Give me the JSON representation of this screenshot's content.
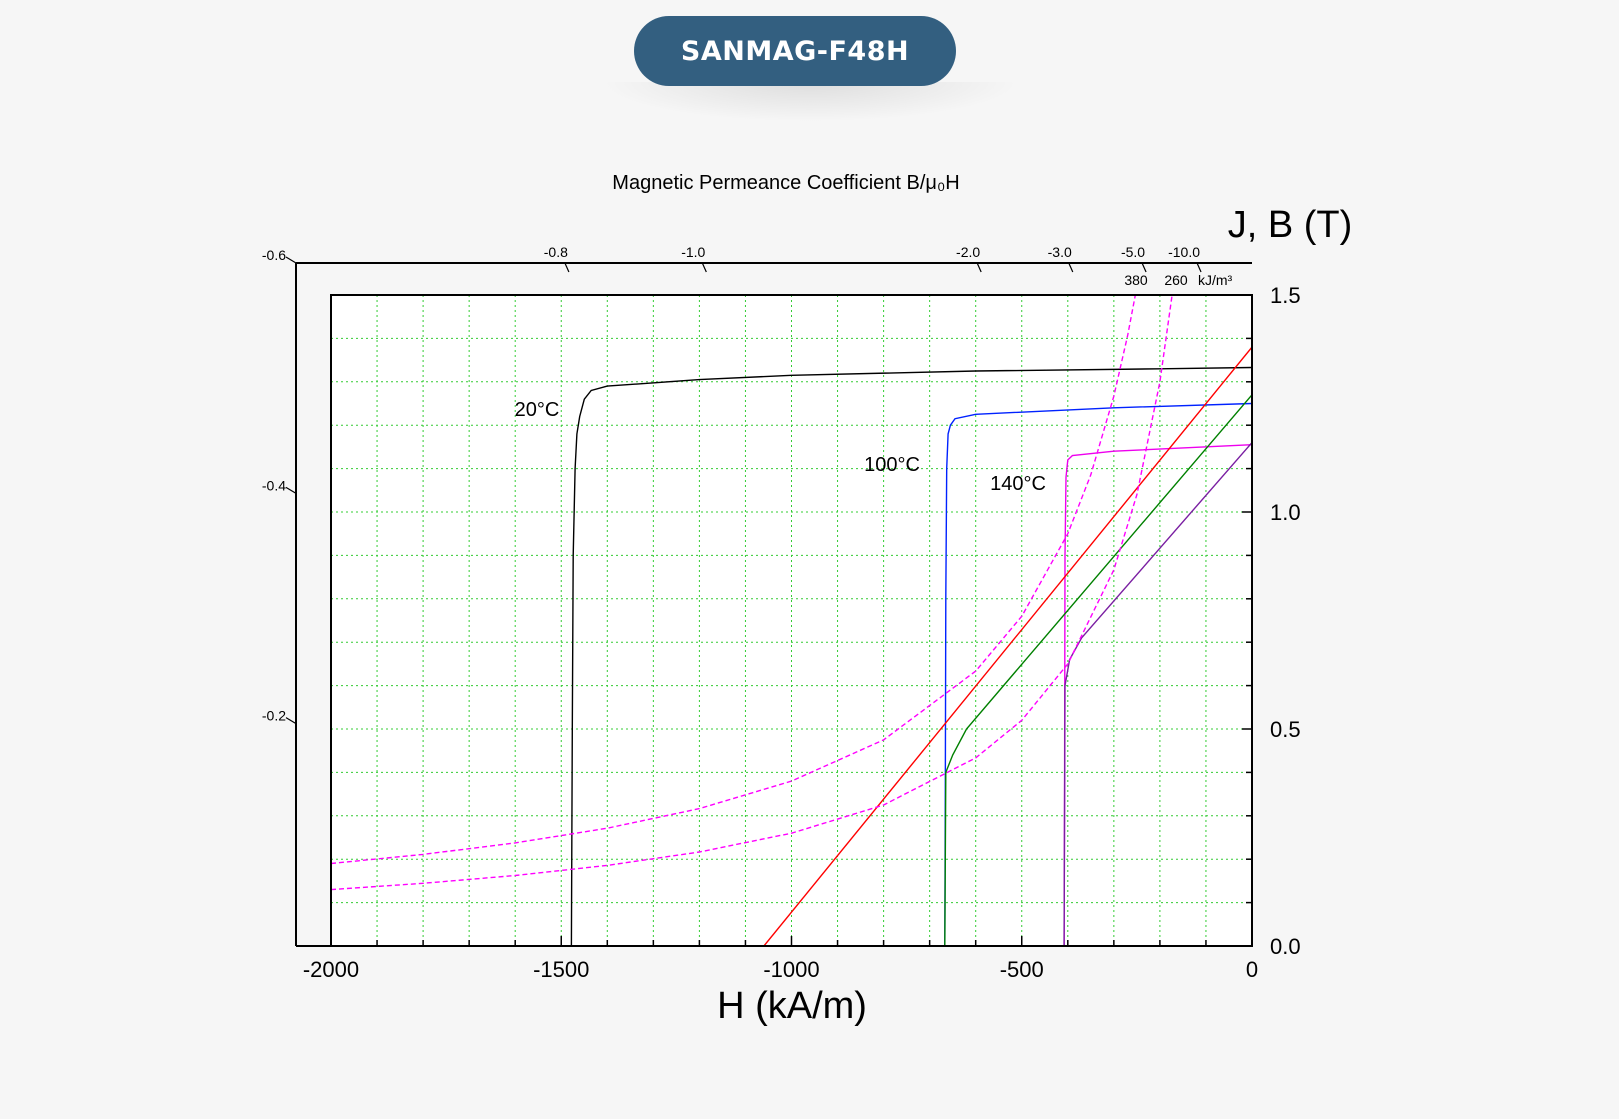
{
  "header": {
    "title": "SANMAG-F48H"
  },
  "chart_data": {
    "type": "line",
    "title": "",
    "top_axis_title": "Magnetic Permeance Coefficient B/μ₀H",
    "xlabel": "H (kA/m)",
    "ylabel": "J, B (T)",
    "xlim": [
      -2000,
      0
    ],
    "ylim": [
      0,
      1.5
    ],
    "x_ticks": [
      -2000,
      -1500,
      -1000,
      -500,
      0
    ],
    "y_ticks": [
      "0.0",
      "0.5",
      "1.0",
      "1.5"
    ],
    "y_tick_values": [
      0,
      0.5,
      1.0,
      1.5
    ],
    "grid": true,
    "permeance_ticks": [
      "-0.8",
      "-1.0",
      "-2.0",
      "-3.0",
      "-5.0",
      "-10.0"
    ],
    "permeance_tick_values": [
      -0.8,
      -1.0,
      -2.0,
      -3.0,
      -5.0,
      -10.0
    ],
    "left_axis_ticks": [
      "-0.6",
      "-0.4",
      "-0.2"
    ],
    "left_axis_tick_values": [
      -0.6,
      -0.4,
      -0.2
    ],
    "energy_product_labels": [
      "380",
      "260"
    ],
    "energy_product_unit": "kJ/m³",
    "series": [
      {
        "label": "20°C",
        "kind": "J",
        "color": "#000000",
        "points": [
          [
            -1478,
            0
          ],
          [
            -1476,
            0.5
          ],
          [
            -1474,
            0.9
          ],
          [
            -1470,
            1.1
          ],
          [
            -1466,
            1.18
          ],
          [
            -1460,
            1.22
          ],
          [
            -1450,
            1.26
          ],
          [
            -1435,
            1.28
          ],
          [
            -1400,
            1.29
          ],
          [
            -1200,
            1.305
          ],
          [
            -1000,
            1.315
          ],
          [
            -600,
            1.325
          ],
          [
            -200,
            1.33
          ],
          [
            0,
            1.333
          ]
        ]
      },
      {
        "label": "100°C",
        "kind": "J",
        "color": "#0022ff",
        "points": [
          [
            -667,
            0
          ],
          [
            -666,
            0.35
          ],
          [
            -665,
            0.8
          ],
          [
            -663,
            1.1
          ],
          [
            -660,
            1.18
          ],
          [
            -655,
            1.2
          ],
          [
            -645,
            1.215
          ],
          [
            -600,
            1.225
          ],
          [
            -300,
            1.24
          ],
          [
            0,
            1.25
          ]
        ]
      },
      {
        "label": "140°C",
        "kind": "J",
        "color": "#ee00ee",
        "points": [
          [
            -408,
            0
          ],
          [
            -407,
            0.4
          ],
          [
            -406,
            0.9
          ],
          [
            -404,
            1.08
          ],
          [
            -400,
            1.12
          ],
          [
            -390,
            1.13
          ],
          [
            -300,
            1.14
          ],
          [
            0,
            1.155
          ]
        ]
      },
      {
        "label": "",
        "kind": "B",
        "color": "#ff0000",
        "points": [
          [
            -1060,
            0
          ],
          [
            0,
            1.38
          ]
        ]
      },
      {
        "label": "",
        "kind": "B",
        "color": "#008000",
        "points": [
          [
            -667,
            0
          ],
          [
            -665,
            0.4
          ],
          [
            -650,
            0.44
          ],
          [
            -620,
            0.5
          ],
          [
            0,
            1.27
          ]
        ]
      },
      {
        "label": "",
        "kind": "B",
        "color": "#7a1fa2",
        "points": [
          [
            -408,
            0
          ],
          [
            -406,
            0.6
          ],
          [
            -396,
            0.66
          ],
          [
            -370,
            0.71
          ],
          [
            0,
            1.16
          ]
        ]
      },
      {
        "label": "380",
        "kind": "energy",
        "color": "#ff00ff",
        "dashed": true,
        "points": [
          [
            -2000,
            0.19
          ],
          [
            -1800,
            0.211
          ],
          [
            -1600,
            0.2375
          ],
          [
            -1400,
            0.2714
          ],
          [
            -1200,
            0.3167
          ],
          [
            -1000,
            0.38
          ],
          [
            -800,
            0.475
          ],
          [
            -600,
            0.6333
          ],
          [
            -500,
            0.76
          ],
          [
            -400,
            0.95
          ],
          [
            -350,
            1.0857
          ],
          [
            -300,
            1.2667
          ],
          [
            -270,
            1.4074
          ],
          [
            -252,
            1.508
          ]
        ]
      },
      {
        "label": "260",
        "kind": "energy",
        "color": "#ff00ff",
        "dashed": true,
        "points": [
          [
            -2000,
            0.13
          ],
          [
            -1800,
            0.1444
          ],
          [
            -1600,
            0.1625
          ],
          [
            -1400,
            0.1857
          ],
          [
            -1200,
            0.2167
          ],
          [
            -1000,
            0.26
          ],
          [
            -800,
            0.325
          ],
          [
            -600,
            0.4333
          ],
          [
            -500,
            0.52
          ],
          [
            -400,
            0.65
          ],
          [
            -300,
            0.8667
          ],
          [
            -250,
            1.04
          ],
          [
            -200,
            1.3
          ],
          [
            -173,
            1.503
          ]
        ]
      }
    ],
    "annotations": [
      "20°C",
      "100°C",
      "140°C"
    ]
  }
}
